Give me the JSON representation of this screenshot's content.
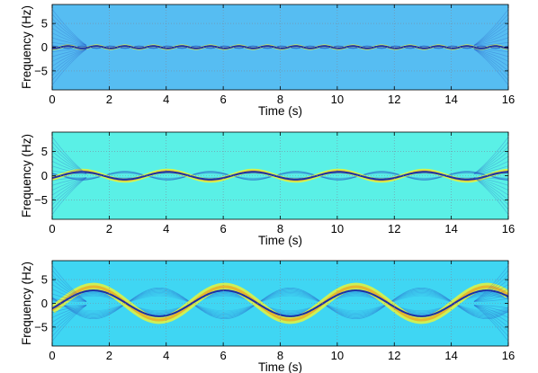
{
  "chart_data": [
    {
      "type": "heatmap",
      "panel": 1,
      "xlabel": "Time (s)",
      "ylabel": "Frequency (Hz)",
      "xlim": [
        0,
        16
      ],
      "ylim": [
        -9,
        9
      ],
      "xticks": [
        0,
        2,
        4,
        6,
        8,
        10,
        12,
        14,
        16
      ],
      "yticks": [
        5,
        0,
        -5
      ],
      "grid": true,
      "background_color": "#56BDF2",
      "ridge": {
        "center_hz": 0,
        "amplitude_hz": 0.3,
        "period_s": 1.0,
        "band_halfwidth_hz": 0.9
      }
    },
    {
      "type": "heatmap",
      "panel": 2,
      "xlabel": "Time (s)",
      "ylabel": "Frequency (Hz)",
      "xlim": [
        0,
        16
      ],
      "ylim": [
        -9,
        9
      ],
      "xticks": [
        0,
        2,
        4,
        6,
        8,
        10,
        12,
        14,
        16
      ],
      "yticks": [
        5,
        0,
        -5
      ],
      "grid": true,
      "background_color": "#5AF0E6",
      "ridge": {
        "center_hz": 0,
        "amplitude_hz": 1.0,
        "period_s": 3.0,
        "band_halfwidth_hz": 1.6
      }
    },
    {
      "type": "heatmap",
      "panel": 3,
      "xlabel": "Time (s)",
      "ylabel": "Frequency (Hz)",
      "xlim": [
        0,
        16
      ],
      "ylim": [
        -9,
        9
      ],
      "xticks": [
        0,
        2,
        4,
        6,
        8,
        10,
        12,
        14,
        16
      ],
      "yticks": [
        5,
        0,
        -5
      ],
      "grid": true,
      "background_color": "#3FD6F3",
      "ridge": {
        "center_hz": 0,
        "amplitude_hz": 3.5,
        "period_s": 4.6,
        "band_halfwidth_hz": 3.0
      }
    }
  ]
}
